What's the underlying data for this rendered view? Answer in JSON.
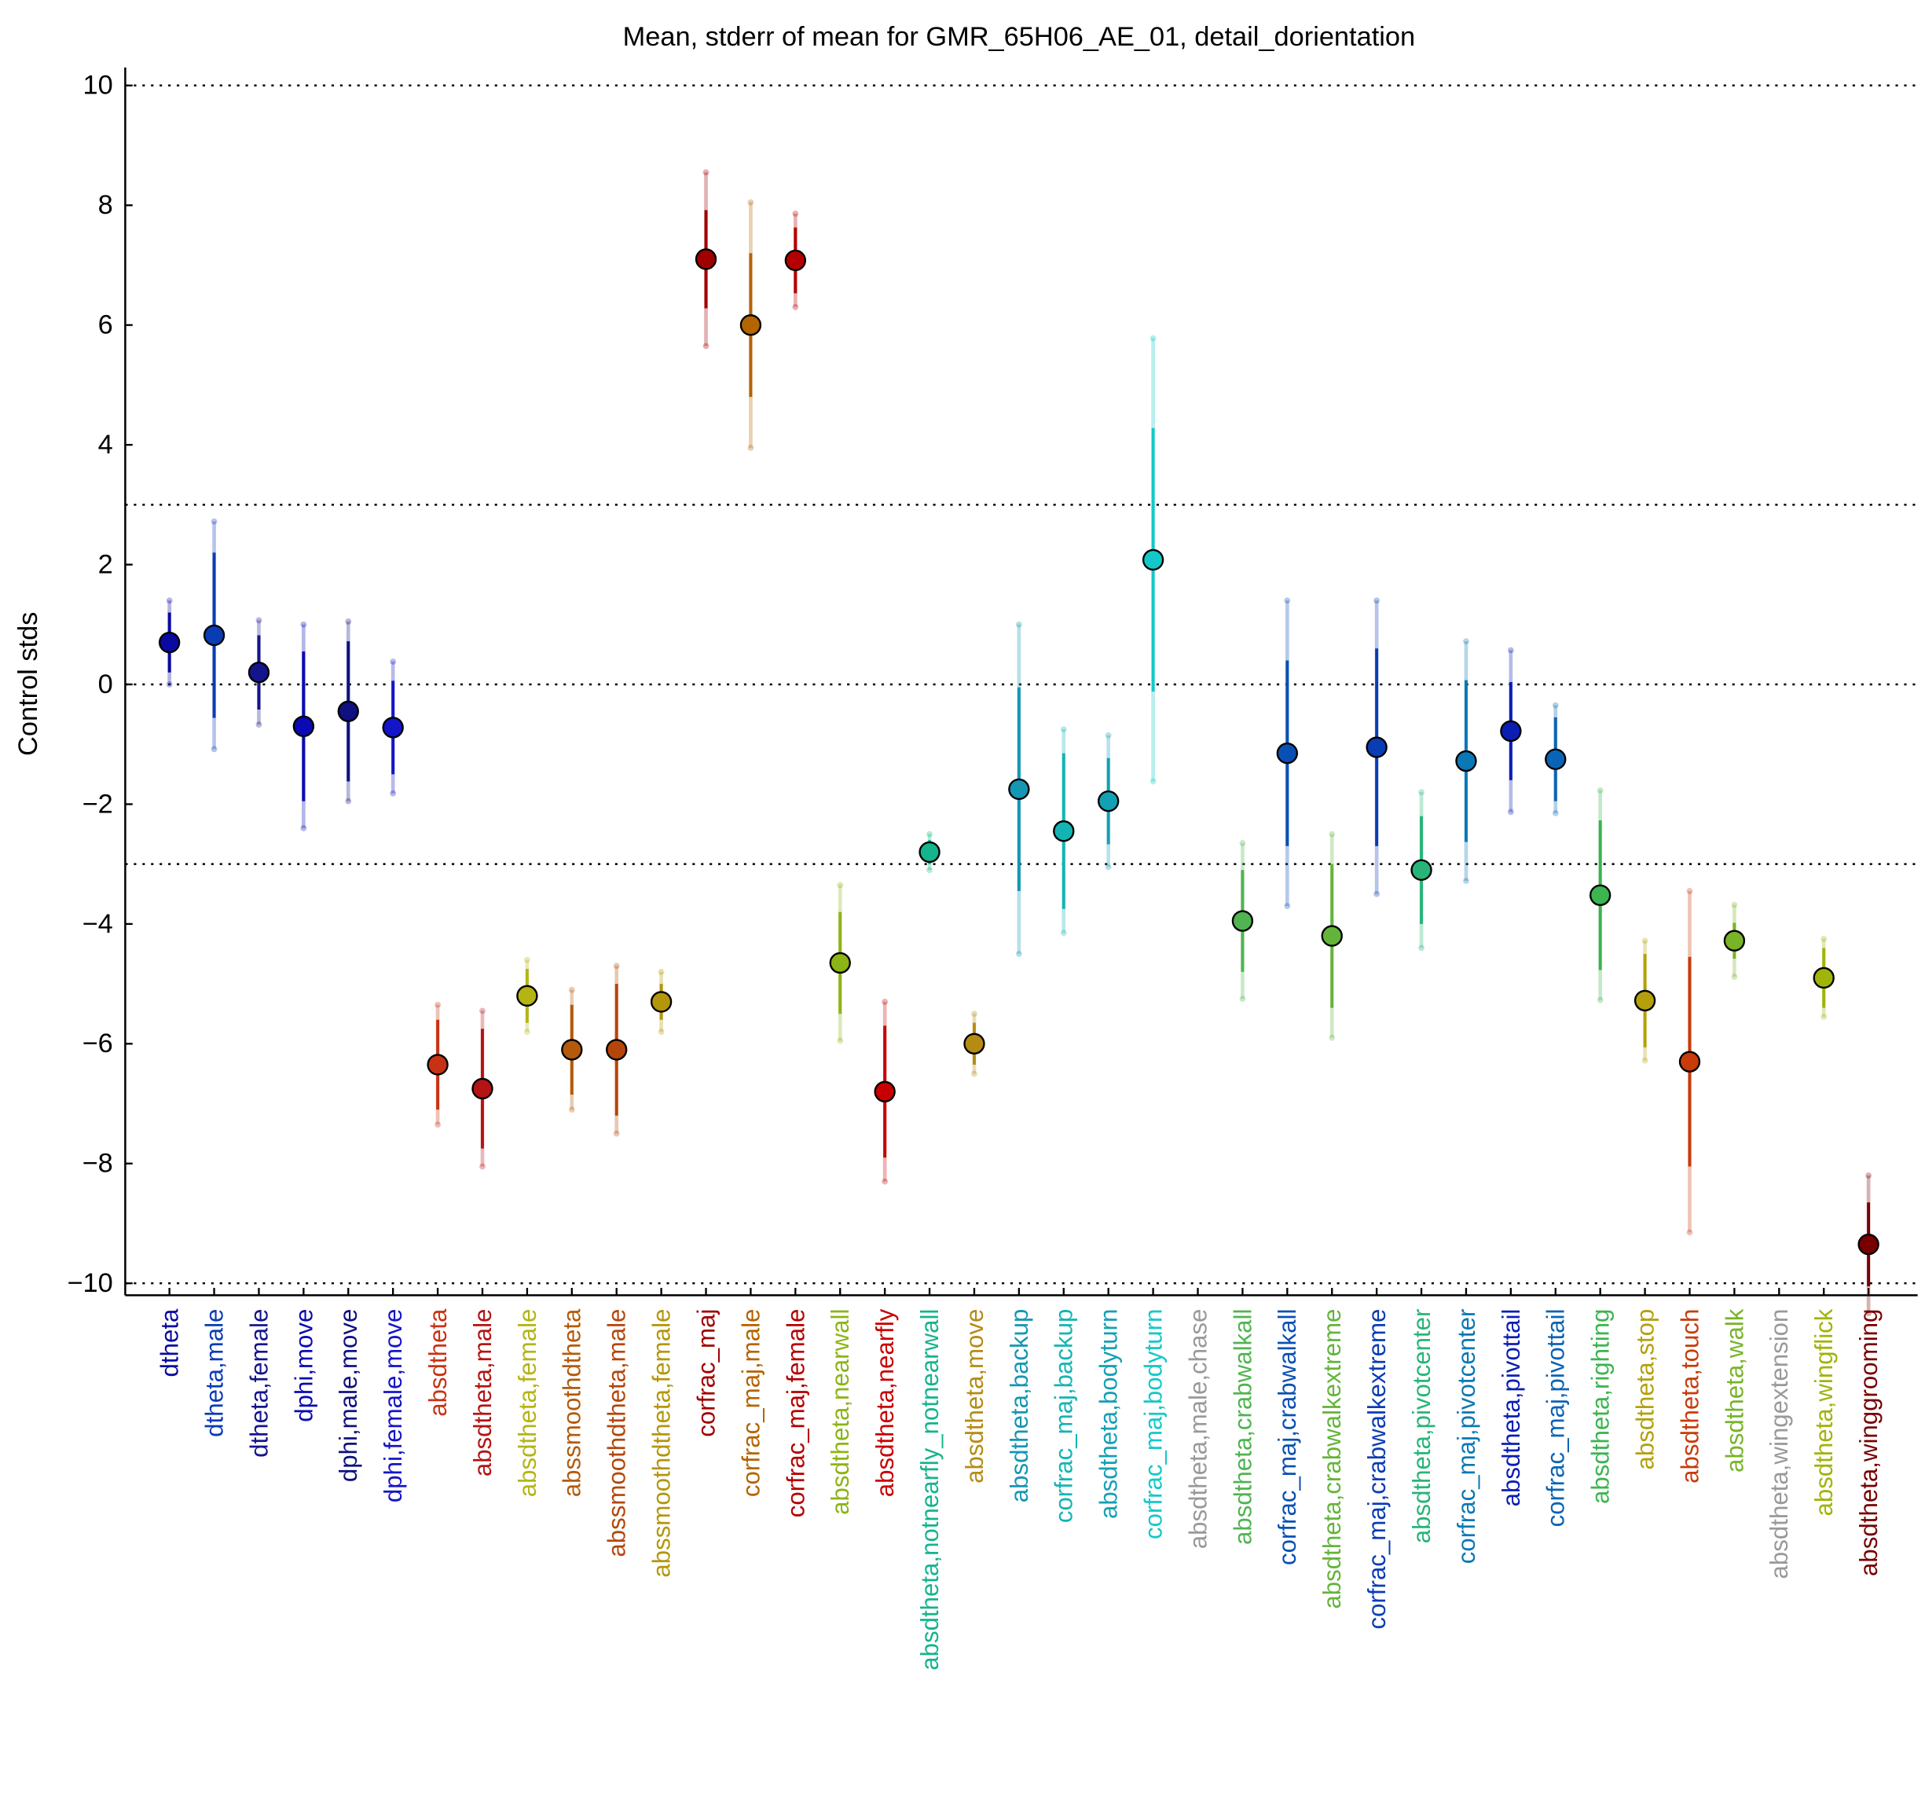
{
  "chart_data": {
    "type": "errorbar",
    "title": "Mean, stderr of mean for GMR_65H06_AE_01, detail_dorientation",
    "y_label": "Control stds",
    "categories": [
      "dtheta",
      "dtheta,male",
      "dtheta,female",
      "dphi,move",
      "dphi,male,move",
      "dphi,female,move",
      "absdtheta",
      "absdtheta,male",
      "absdtheta,female",
      "abssmoothdtheta",
      "abssmoothdtheta,male",
      "abssmoothdtheta,female",
      "corfrac_maj",
      "corfrac_maj,male",
      "corfrac_maj,female",
      "absdtheta,nearwall",
      "absdtheta,nearfly",
      "absdtheta,notnearfly_notnearwall",
      "absdtheta,move",
      "absdtheta,backup",
      "corfrac_maj,backup",
      "absdtheta,bodyturn",
      "corfrac_maj,bodyturn",
      "absdtheta,male,chase",
      "absdtheta,crabwalkall",
      "corfrac_maj,crabwalkall",
      "absdtheta,crabwalkextreme",
      "corfrac_maj,crabwalkextreme",
      "absdtheta,pivotcenter",
      "corfrac_maj,pivotcenter",
      "absdtheta,pivottail",
      "corfrac_maj,pivottail",
      "absdtheta,righting",
      "absdtheta,stop",
      "absdtheta,touch",
      "absdtheta,walk",
      "absdtheta,wingextension",
      "absdtheta,wingflick",
      "absdtheta,winggrooming"
    ],
    "values": [
      0.7,
      0.82,
      0.2,
      -0.7,
      -0.45,
      -0.72,
      -6.35,
      -6.75,
      -5.2,
      -6.1,
      -6.1,
      -5.3,
      7.1,
      6.0,
      7.08,
      -4.65,
      -6.8,
      -2.8,
      -6.0,
      -1.75,
      -2.45,
      -1.95,
      2.08,
      null,
      -3.95,
      -1.15,
      -4.2,
      -1.05,
      -3.1,
      -1.28,
      -0.78,
      -1.25,
      -3.52,
      -5.28,
      -6.3,
      -4.28,
      null,
      -4.9,
      -9.35
    ],
    "errors": [
      0.5,
      1.38,
      0.62,
      1.25,
      1.17,
      0.78,
      0.75,
      1.0,
      0.45,
      0.75,
      1.1,
      0.3,
      0.82,
      1.2,
      0.55,
      0.85,
      1.1,
      0.2,
      0.35,
      1.7,
      1.3,
      0.72,
      2.2,
      null,
      0.85,
      1.55,
      1.2,
      1.65,
      0.9,
      1.35,
      0.82,
      0.7,
      1.25,
      0.78,
      1.75,
      0.3,
      null,
      0.5,
      0.7
    ],
    "errors_light": [
      0.7,
      1.9,
      0.87,
      1.7,
      1.5,
      1.1,
      1.0,
      1.3,
      0.6,
      1.0,
      1.4,
      0.5,
      1.45,
      2.05,
      0.78,
      1.3,
      1.5,
      0.3,
      0.5,
      2.75,
      1.7,
      1.1,
      3.7,
      null,
      1.3,
      2.55,
      1.7,
      2.45,
      1.3,
      2.0,
      1.35,
      0.9,
      1.75,
      1.0,
      2.85,
      0.6,
      null,
      0.65,
      1.15
    ],
    "colors": [
      "#0a0aa0",
      "#0a3cb4",
      "#14148c",
      "#0a0ab4",
      "#101080",
      "#1414c8",
      "#c83214",
      "#b41414",
      "#b4b414",
      "#b45a0a",
      "#b4460a",
      "#b4960a",
      "#a00000",
      "#b46400",
      "#b40000",
      "#8cb414",
      "#c80000",
      "#14b48c",
      "#b48c14",
      "#1496b4",
      "#14b4b4",
      "#14a0b4",
      "#14c8c8",
      "#999999",
      "#50b450",
      "#0a50b4",
      "#64b43c",
      "#0a3cb4",
      "#28b478",
      "#0a78b4",
      "#0a1eb4",
      "#0a64b4",
      "#3cb450",
      "#b4a00a",
      "#c83c0a",
      "#78b428",
      "#999999",
      "#a0b40a",
      "#780000"
    ],
    "ylim": [
      -10.2,
      10.3
    ],
    "yticks": [
      {
        "value": -10,
        "label": "−10"
      },
      {
        "value": -8,
        "label": "−8"
      },
      {
        "value": -6,
        "label": "−6"
      },
      {
        "value": -4,
        "label": "−4"
      },
      {
        "value": -2,
        "label": "−2"
      },
      0,
      2,
      4,
      6,
      8,
      10
    ],
    "reference_lines": [
      10,
      3,
      0,
      -3,
      -10
    ]
  }
}
